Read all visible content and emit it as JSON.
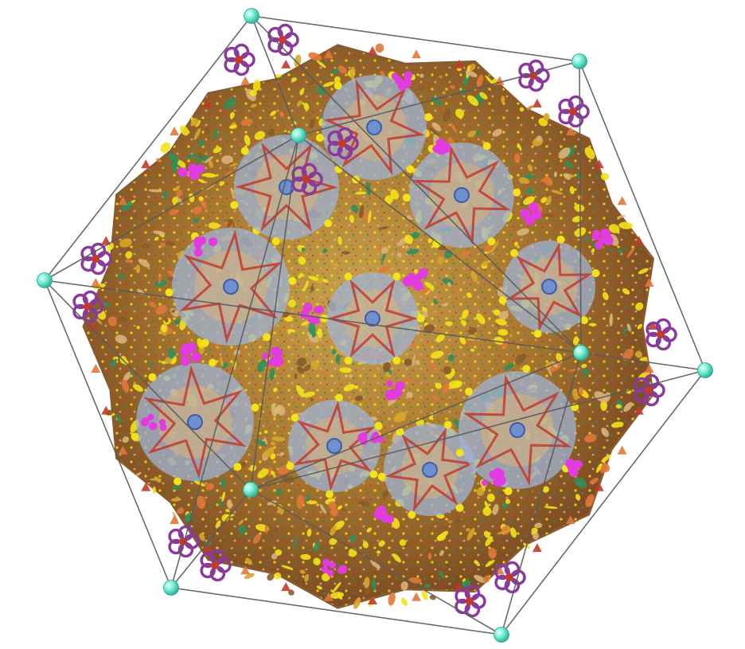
{
  "scene": {
    "kind": "capsid-molecular-render",
    "symmetry": "icosahedral",
    "background": "#ffffff",
    "cage_line_color": "#5a5a5a",
    "vertex_color": "#5fe3c6",
    "palette": {
      "shell_brown": "#8a5a2b",
      "gold": "#d6a62a",
      "yellow": "#f2e21a",
      "green": "#2f8f5b",
      "tan": "#d9b27a",
      "blue_grey": "#9fb3d6",
      "red": "#c23a2a",
      "magenta": "#e23be2",
      "purple": "#8a3a9a",
      "orange": "#e0783a"
    },
    "vertex_icon": "sphere-icon",
    "pentamer_icon": "flower-icon"
  }
}
